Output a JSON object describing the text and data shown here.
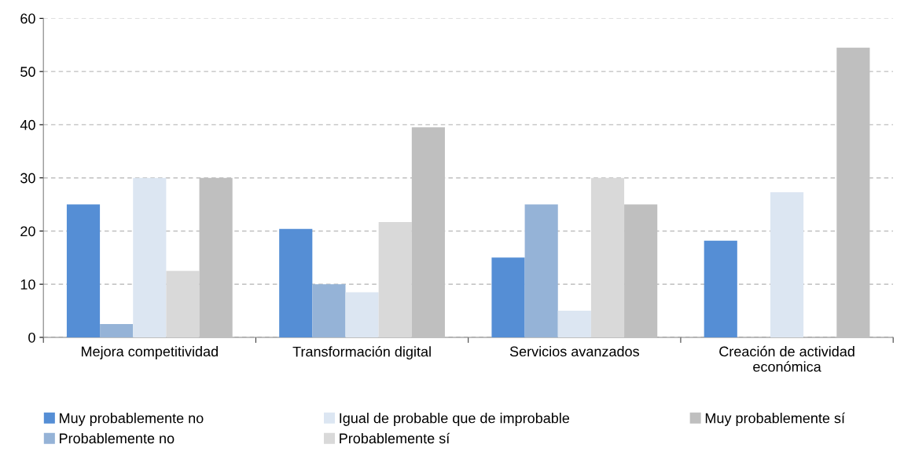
{
  "chart_data": {
    "type": "bar",
    "categories": [
      "Mejora competitividad",
      "Transformación digital",
      "Servicios avanzados",
      "Creación de actividad\neconómica"
    ],
    "series": [
      {
        "name": "Muy probablemente no",
        "color": "#558ed5",
        "values": [
          25,
          20.4,
          15,
          18.2
        ]
      },
      {
        "name": "Probablemente no",
        "color": "#95b3d7",
        "values": [
          2.5,
          10,
          25,
          0
        ]
      },
      {
        "name": "Igual de probable que de improbable",
        "color": "#dce6f2",
        "values": [
          30,
          8.5,
          5,
          27.3
        ]
      },
      {
        "name": "Probablemente sí",
        "color": "#d9d9d9",
        "values": [
          12.5,
          21.7,
          30,
          0
        ]
      },
      {
        "name": "Muy probablemente sí",
        "color": "#bfbfbf",
        "values": [
          30,
          39.5,
          25,
          54.5
        ]
      }
    ],
    "ylim": [
      0,
      60
    ],
    "yticks": [
      0,
      10,
      20,
      30,
      40,
      50,
      60
    ],
    "grid": "y",
    "legend": "bottom"
  }
}
